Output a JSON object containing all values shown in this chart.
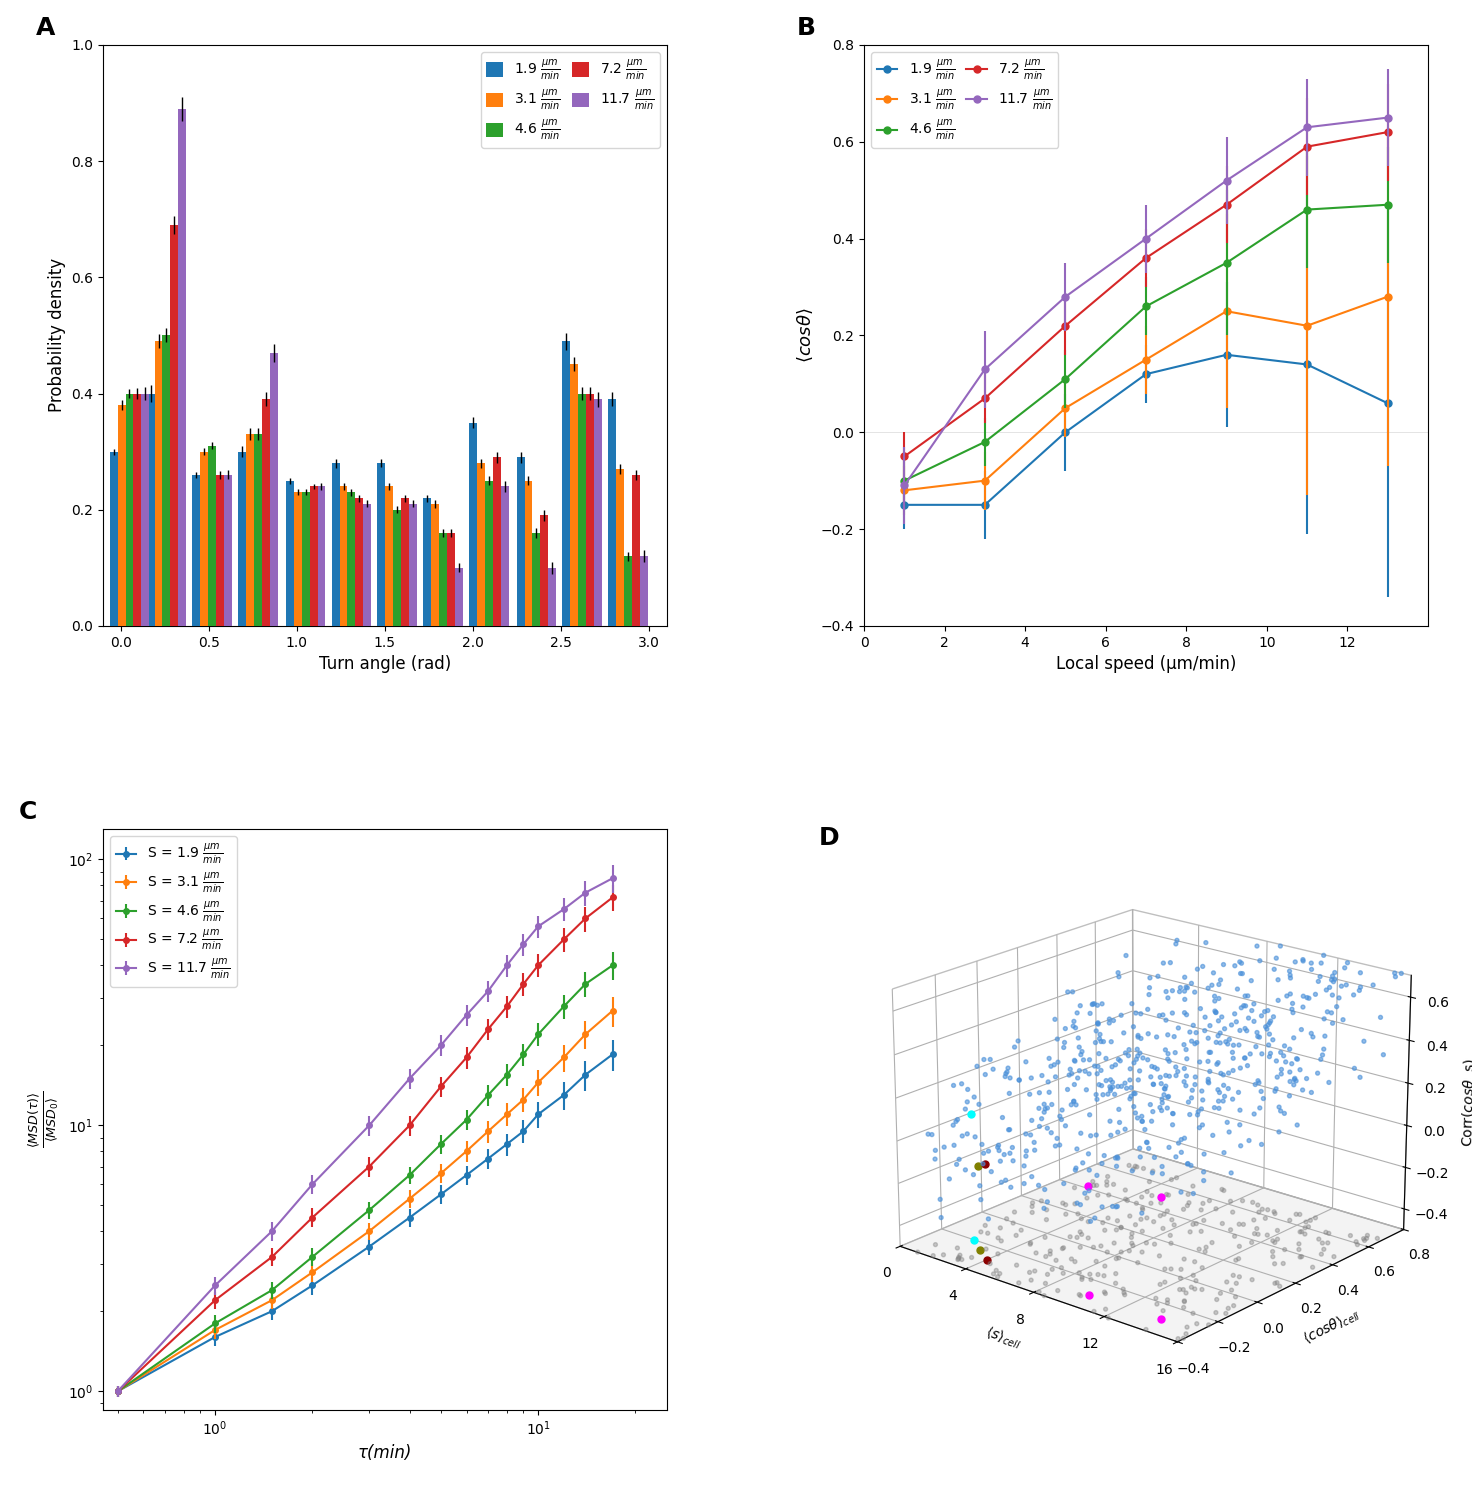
{
  "panel_A": {
    "title": "A",
    "xlabel": "Turn angle (rad)",
    "ylabel": "Probability density",
    "colors": [
      "#1f77b4",
      "#ff7f0e",
      "#2ca02c",
      "#d62728",
      "#9467bd"
    ],
    "speeds": [
      "1.9",
      "3.1",
      "4.6",
      "7.2",
      "11.7"
    ],
    "bin_centers": [
      0.05,
      0.26,
      0.52,
      0.78,
      1.05,
      1.31,
      1.57,
      1.83,
      2.09,
      2.36,
      2.62,
      2.88
    ],
    "bar_values": [
      [
        0.3,
        0.4,
        0.26,
        0.3,
        0.25,
        0.28,
        0.28,
        0.22,
        0.35,
        0.29,
        0.49,
        0.39
      ],
      [
        0.38,
        0.49,
        0.3,
        0.33,
        0.23,
        0.24,
        0.24,
        0.21,
        0.28,
        0.25,
        0.45,
        0.27
      ],
      [
        0.4,
        0.5,
        0.31,
        0.33,
        0.23,
        0.23,
        0.2,
        0.16,
        0.25,
        0.16,
        0.4,
        0.12
      ],
      [
        0.4,
        0.69,
        0.26,
        0.39,
        0.24,
        0.22,
        0.22,
        0.16,
        0.29,
        0.19,
        0.4,
        0.26
      ],
      [
        0.4,
        0.89,
        0.26,
        0.47,
        0.24,
        0.21,
        0.21,
        0.1,
        0.24,
        0.1,
        0.39,
        0.12
      ]
    ],
    "bar_errors": [
      [
        0.005,
        0.015,
        0.005,
        0.01,
        0.005,
        0.008,
        0.007,
        0.006,
        0.01,
        0.01,
        0.015,
        0.012
      ],
      [
        0.008,
        0.012,
        0.006,
        0.01,
        0.005,
        0.006,
        0.006,
        0.007,
        0.008,
        0.008,
        0.012,
        0.008
      ],
      [
        0.008,
        0.012,
        0.006,
        0.01,
        0.005,
        0.006,
        0.006,
        0.007,
        0.008,
        0.008,
        0.012,
        0.008
      ],
      [
        0.01,
        0.015,
        0.007,
        0.012,
        0.005,
        0.006,
        0.006,
        0.007,
        0.009,
        0.009,
        0.012,
        0.009
      ],
      [
        0.012,
        0.02,
        0.008,
        0.015,
        0.006,
        0.006,
        0.006,
        0.008,
        0.01,
        0.01,
        0.013,
        0.01
      ]
    ],
    "ylim": [
      0.0,
      1.0
    ],
    "xlim": [
      -0.1,
      3.1
    ]
  },
  "panel_B": {
    "title": "B",
    "xlabel": "Local speed (μm/min)",
    "ylabel": "⟨cosθ⟩",
    "colors": [
      "#1f77b4",
      "#ff7f0e",
      "#2ca02c",
      "#d62728",
      "#9467bd"
    ],
    "speeds": [
      "1.9",
      "3.1",
      "4.6",
      "7.2",
      "11.7"
    ],
    "x_values": [
      1,
      3,
      5,
      7,
      9,
      11,
      13
    ],
    "y_values": [
      [
        -0.15,
        -0.15,
        0.0,
        0.12,
        0.16,
        0.14,
        0.06
      ],
      [
        -0.12,
        -0.1,
        0.05,
        0.15,
        0.25,
        0.22,
        0.28
      ],
      [
        -0.1,
        -0.02,
        0.11,
        0.26,
        0.35,
        0.46,
        0.47
      ],
      [
        -0.05,
        0.07,
        0.22,
        0.36,
        0.47,
        0.59,
        0.62
      ],
      [
        -0.11,
        0.13,
        0.28,
        0.4,
        0.52,
        0.63,
        0.65
      ]
    ],
    "y_errors": [
      [
        0.05,
        0.07,
        0.08,
        0.06,
        0.15,
        0.35,
        0.4
      ],
      [
        0.05,
        0.06,
        0.06,
        0.07,
        0.2,
        0.35,
        0.35
      ],
      [
        0.05,
        0.05,
        0.06,
        0.06,
        0.15,
        0.12,
        0.12
      ],
      [
        0.05,
        0.05,
        0.06,
        0.06,
        0.08,
        0.1,
        0.1
      ],
      [
        0.08,
        0.08,
        0.07,
        0.07,
        0.09,
        0.1,
        0.1
      ]
    ],
    "ylim": [
      -0.4,
      0.8
    ],
    "xlim": [
      0,
      14
    ]
  },
  "panel_C": {
    "title": "C",
    "xlabel": "τ(min)",
    "ylabel": "⟨MSD(τ)⟩\n⟨MSD₀⟩",
    "colors": [
      "#1f77b4",
      "#ff7f0e",
      "#2ca02c",
      "#d62728",
      "#9467bd"
    ],
    "speeds": [
      "1.9",
      "3.1",
      "4.6",
      "7.2",
      "11.7"
    ],
    "tau_values": [
      0.5,
      1.0,
      1.5,
      2.0,
      3.0,
      4.0,
      5.0,
      6.0,
      7.0,
      8.0,
      9.0,
      10.0,
      12.0,
      14.0,
      17.0
    ],
    "msd_values": [
      [
        1.0,
        1.6,
        2.0,
        2.5,
        3.5,
        4.5,
        5.5,
        6.5,
        7.5,
        8.5,
        9.5,
        11.0,
        13.0,
        15.5,
        18.5
      ],
      [
        1.0,
        1.7,
        2.2,
        2.8,
        4.0,
        5.3,
        6.6,
        8.0,
        9.5,
        11.0,
        12.5,
        14.5,
        18.0,
        22.0,
        27.0
      ],
      [
        1.0,
        1.8,
        2.4,
        3.2,
        4.8,
        6.5,
        8.5,
        10.5,
        13.0,
        15.5,
        18.5,
        22.0,
        28.0,
        34.0,
        40.0
      ],
      [
        1.0,
        2.2,
        3.2,
        4.5,
        7.0,
        10.0,
        14.0,
        18.0,
        23.0,
        28.0,
        34.0,
        40.0,
        50.0,
        60.0,
        72.0
      ],
      [
        1.0,
        2.5,
        4.0,
        6.0,
        10.0,
        15.0,
        20.0,
        26.0,
        32.0,
        40.0,
        48.0,
        56.0,
        65.0,
        75.0,
        85.0
      ]
    ],
    "msd_errors": [
      [
        0.05,
        0.12,
        0.15,
        0.2,
        0.25,
        0.35,
        0.45,
        0.55,
        0.65,
        0.8,
        0.95,
        1.2,
        1.6,
        2.0,
        2.5
      ],
      [
        0.05,
        0.13,
        0.17,
        0.22,
        0.3,
        0.42,
        0.55,
        0.7,
        0.9,
        1.1,
        1.3,
        1.6,
        2.1,
        2.7,
        3.5
      ],
      [
        0.05,
        0.14,
        0.18,
        0.25,
        0.35,
        0.5,
        0.68,
        0.88,
        1.15,
        1.45,
        1.8,
        2.2,
        2.9,
        3.7,
        4.8
      ],
      [
        0.05,
        0.17,
        0.25,
        0.37,
        0.58,
        0.85,
        1.2,
        1.65,
        2.15,
        2.7,
        3.3,
        4.0,
        5.2,
        6.5,
        8.0
      ],
      [
        0.05,
        0.2,
        0.32,
        0.5,
        0.85,
        1.3,
        1.8,
        2.4,
        3.0,
        3.8,
        4.6,
        5.4,
        6.5,
        8.0,
        10.0
      ]
    ]
  },
  "panel_D": {
    "title": "D",
    "xlabel": "⟨s⟩_cell",
    "ylabel": "⟨cosθ⟩_cell",
    "zlabel": "Corr(cosθ, s)",
    "n_blue": 600,
    "n_gray": 300,
    "seed": 42
  },
  "legend_labels": [
    "1.9 μm/min",
    "3.1 μm/min",
    "4.6 μm/min",
    "7.2 μm/min",
    "11.7 μm/min"
  ],
  "colors": [
    "#1f77b4",
    "#ff7f0e",
    "#2ca02c",
    "#d62728",
    "#9467bd"
  ]
}
